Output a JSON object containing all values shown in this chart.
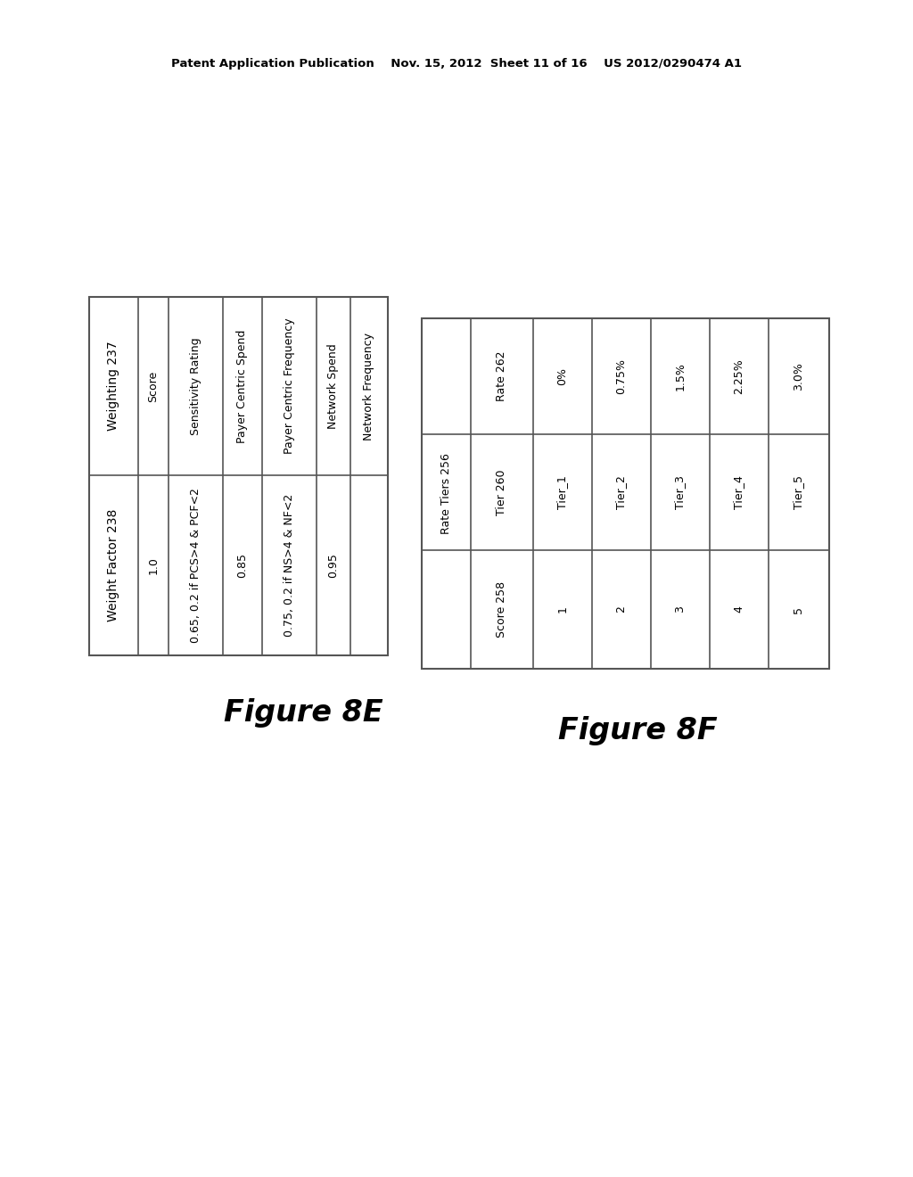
{
  "header_text": "Patent Application Publication    Nov. 15, 2012  Sheet 11 of 16    US 2012/0290474 A1",
  "figure_8e": {
    "label": "Figure 8E",
    "col1_header": "Weighting 237",
    "col2_header": "Weight Factor 238",
    "rows": [
      [
        "Score",
        "1.0"
      ],
      [
        "Sensitivity Rating",
        "0.65, 0.2 if PCS>4 & PCF<2"
      ],
      [
        "Payer Centric Spend",
        "0.85"
      ],
      [
        "Payer Centric Frequency",
        "0.75, 0.2 if NS>4 & NF<2"
      ],
      [
        "Network Spend",
        "0.95"
      ],
      [
        "Network Frequency",
        ""
      ]
    ]
  },
  "figure_8f": {
    "label": "Figure 8F",
    "col1_header": "Score 258",
    "col2_header": "Tier 260",
    "col3_header": "Rate 262",
    "table_header": "Rate Tiers 256",
    "rows": [
      [
        "1",
        "Tier_1",
        "0%"
      ],
      [
        "2",
        "Tier_2",
        "0.75%"
      ],
      [
        "3",
        "Tier_3",
        "1.5%"
      ],
      [
        "4",
        "Tier_4",
        "2.25%"
      ],
      [
        "5",
        "Tier_5",
        "3.0%"
      ]
    ]
  },
  "bg_color": "#ffffff",
  "text_color": "#000000",
  "line_color": "#555555",
  "header_fontsize": 9,
  "body_fontsize": 9,
  "figure_label_fontsize": 24
}
